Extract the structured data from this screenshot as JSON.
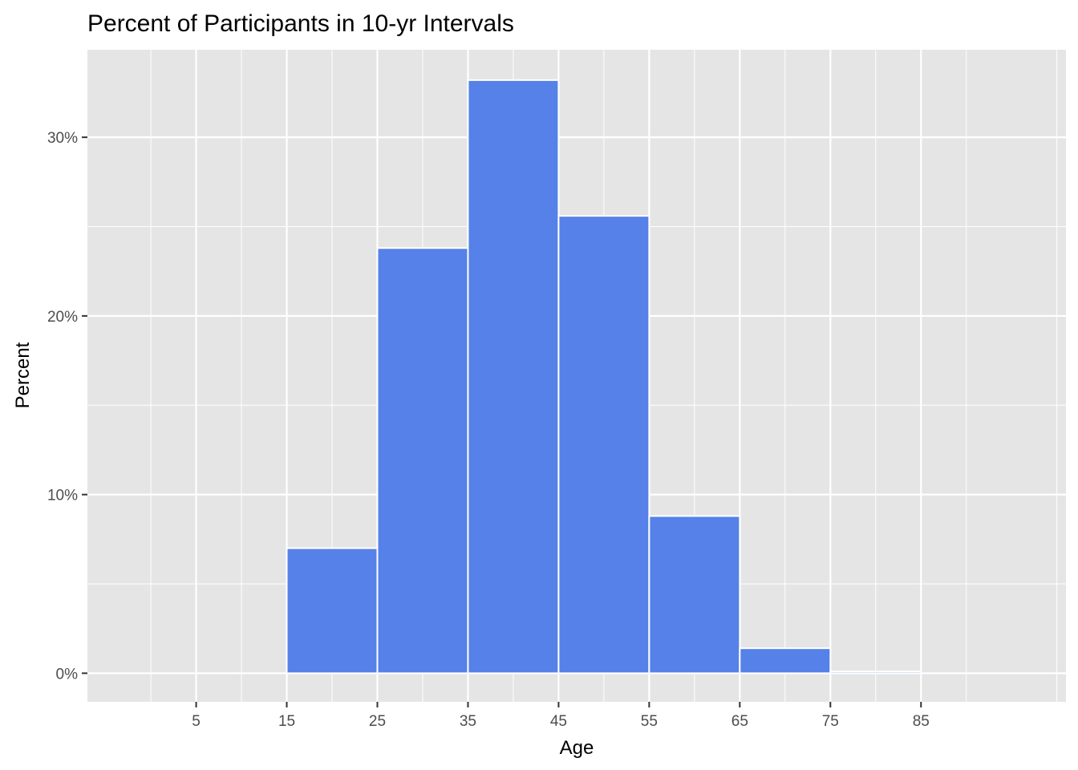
{
  "chart_data": {
    "type": "bar",
    "title": "Percent of Participants in 10-yr Intervals",
    "xlabel": "Age",
    "ylabel": "Percent",
    "bin_edges": [
      15,
      25,
      35,
      45,
      55,
      65,
      75,
      85
    ],
    "values": [
      7.0,
      23.8,
      33.2,
      25.6,
      8.8,
      1.4,
      0.1
    ],
    "xlim": [
      -7,
      101
    ],
    "ylim": [
      -1.6,
      34.9
    ],
    "x_ticks": [
      5,
      15,
      25,
      35,
      45,
      55,
      65,
      75,
      85
    ],
    "x_tick_labels": [
      "5",
      "15",
      "25",
      "35",
      "45",
      "55",
      "65",
      "75",
      "85"
    ],
    "y_ticks": [
      0,
      10,
      20,
      30
    ],
    "y_tick_labels": [
      "0%",
      "10%",
      "20%",
      "30%"
    ],
    "grid": true,
    "colors": {
      "bar_fill": "#5581E8",
      "bar_edge": "#FFFFFF",
      "panel": "#E5E5E5",
      "grid": "#FFFFFF"
    }
  }
}
